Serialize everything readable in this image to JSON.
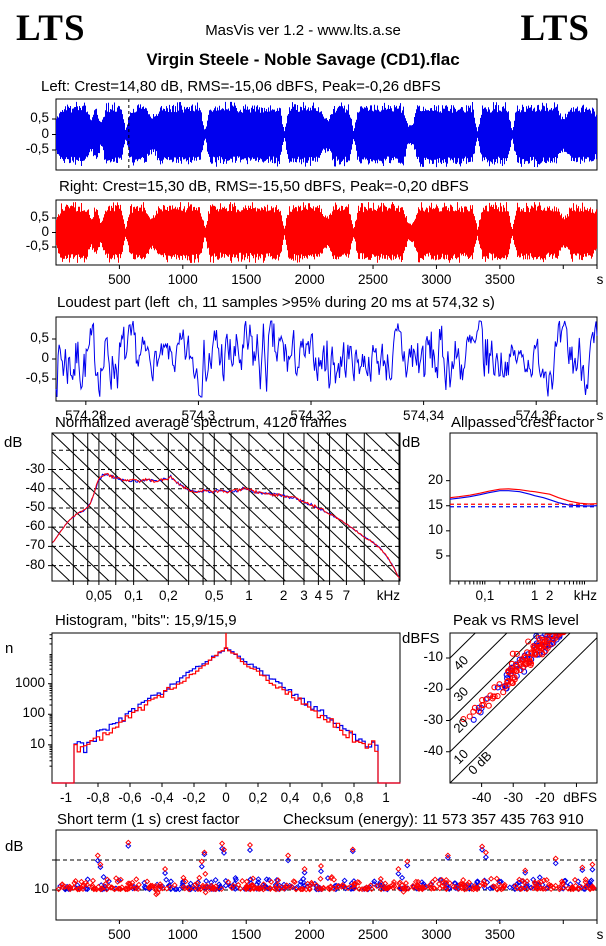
{
  "header": {
    "logo_left": "LTS",
    "logo_right": "LTS",
    "app_info": "MasVis ver 1.2 - www.lts.a.se",
    "title": "Virgin Steele - Noble Savage (CD1).flac"
  },
  "colors": {
    "left_channel": "#0000EE",
    "right_channel": "#FF0000",
    "axis": "#000000",
    "background": "#FFFFFF"
  },
  "side_labels": {
    "spectrum_db_left": "dB",
    "spectrum_db_right": "dB",
    "histogram_n": "n",
    "peak_rms_dbfs": "dBFS",
    "short_term_db": "dB"
  },
  "wave_envelope": [
    0.55,
    0.88,
    0.92,
    0.9,
    0.93,
    0.89,
    0.91,
    0.45,
    0.9,
    0.35,
    0.88,
    0.92,
    0.9,
    0.93,
    0.1,
    0.85,
    0.9,
    0.93,
    0.91,
    0.55,
    0.6,
    0.92,
    0.88,
    0.93,
    0.9,
    0.92,
    0.89,
    0.93,
    0.91,
    0.9,
    0.1,
    0.9,
    0.93,
    0.88,
    0.92,
    0.95,
    0.9,
    0.87,
    0.92,
    0.9,
    0.93,
    0.89,
    0.92,
    0.9,
    0.88,
    0.92,
    0.1,
    0.89,
    0.93,
    0.9,
    0.92,
    0.88,
    0.91,
    0.93,
    0.5,
    0.55,
    0.9,
    0.92,
    0.89,
    0.93,
    0.1,
    0.91,
    0.88,
    0.93,
    0.9,
    0.92,
    0.89,
    0.91,
    0.93,
    0.88,
    0.9,
    0.28,
    0.35,
    0.9,
    0.92,
    0.88,
    0.91,
    0.93,
    0.89,
    0.92,
    0.9,
    0.93,
    0.88,
    0.91,
    0.92,
    0.1,
    0.9,
    0.88,
    0.92,
    0.91,
    0.89,
    0.93,
    0.1,
    0.9,
    0.92,
    0.89,
    0.91,
    0.93,
    0.9,
    0.88,
    0.92,
    0.9,
    0.55,
    0.6,
    0.88,
    0.91,
    0.9,
    0.92,
    0.86,
    0.7
  ],
  "chart_data": [
    {
      "id": "wave_left",
      "type": "waveform",
      "title": "Left: Crest=14,80 dB, RMS=-15,06 dBFS, Peak=-0,26 dBFS",
      "panel": [
        56,
        99,
        541,
        71
      ],
      "x_range": [
        0,
        4266
      ],
      "yticks": [
        {
          "v": 0.5,
          "label": "0,5"
        },
        {
          "v": 0,
          "label": "0"
        },
        {
          "v": -0.5,
          "label": "-0,5"
        }
      ],
      "marker_time": 574.32,
      "jitter_seed": 11
    },
    {
      "id": "wave_right",
      "type": "waveform",
      "title": "Right: Crest=15,30 dB, RMS=-15,50 dBFS, Peak=-0,20 dBFS",
      "panel": [
        56,
        200,
        541,
        65
      ],
      "x_range": [
        0,
        4266
      ],
      "yticks": [
        {
          "v": 0.5,
          "label": "0,5"
        },
        {
          "v": 0,
          "label": "0"
        },
        {
          "v": -0.5,
          "label": "-0,5"
        }
      ],
      "xticks": [
        {
          "v": 500,
          "label": "500"
        },
        {
          "v": 1000,
          "label": "1000"
        },
        {
          "v": 1500,
          "label": "1500"
        },
        {
          "v": 2000,
          "label": "2000"
        },
        {
          "v": 2500,
          "label": "2500"
        },
        {
          "v": 3000,
          "label": "3000"
        },
        {
          "v": 3500,
          "label": "3500"
        },
        {
          "v": 4000,
          "label": ""
        },
        {
          "v": 4266,
          "label": ""
        }
      ],
      "x_unit": "s",
      "jitter_seed": 23
    },
    {
      "id": "loudest",
      "type": "noise_wave",
      "title": "Loudest part (left  ch, 11 samples >95% during 20 ms at 574,32 s)",
      "panel": [
        56,
        317,
        541,
        84
      ],
      "x_range": [
        574.2747,
        574.3708
      ],
      "yticks": [
        {
          "v": 0.5,
          "label": "0,5"
        },
        {
          "v": 0,
          "label": "0"
        },
        {
          "v": -0.5,
          "label": "-0,5"
        }
      ],
      "xticks": [
        {
          "v": 574.28,
          "label": "574,28"
        },
        {
          "v": 574.3,
          "label": "574,3"
        },
        {
          "v": 574.32,
          "label": "574,32"
        },
        {
          "v": 574.34,
          "label": "574,34"
        },
        {
          "v": 574.36,
          "label": "574,36"
        },
        {
          "v": 574.3708,
          "label": ""
        }
      ],
      "x_unit": "s",
      "noise_seed": 7
    },
    {
      "id": "spectrum",
      "type": "spectrum",
      "title": "Normalized average spectrum, 4120 frames",
      "panel": [
        52,
        433,
        348,
        148
      ],
      "f_range": [
        0.0196,
        20.4
      ],
      "db_range": [
        -88,
        -11
      ],
      "yticks": [
        {
          "v": -30,
          "label": "-30"
        },
        {
          "v": -40,
          "label": "-40"
        },
        {
          "v": -50,
          "label": "-50"
        },
        {
          "v": -60,
          "label": "-60"
        },
        {
          "v": -70,
          "label": "-70"
        },
        {
          "v": -80,
          "label": "-80"
        }
      ],
      "xticks": [
        {
          "v": 0.05,
          "label": "0,05"
        },
        {
          "v": 0.1,
          "label": "0,1"
        },
        {
          "v": 0.2,
          "label": "0,2"
        },
        {
          "v": 0.5,
          "label": "0,5"
        },
        {
          "v": 1,
          "label": "1"
        },
        {
          "v": 2,
          "label": "2"
        },
        {
          "v": 3,
          "label": "3"
        },
        {
          "v": 4,
          "label": "4"
        },
        {
          "v": 5,
          "label": "5"
        },
        {
          "v": 7,
          "label": "7"
        }
      ],
      "x_unit": "kHz",
      "vgrid": [
        0.03,
        0.04,
        0.05,
        0.07,
        0.1,
        0.2,
        0.3,
        0.4,
        0.5,
        0.7,
        1,
        2,
        3,
        4,
        5,
        7,
        10,
        20
      ],
      "dashed_db": [
        -20,
        -30,
        -40,
        -50,
        -60,
        -70,
        -80
      ],
      "diag": {
        "dx": 19.6,
        "run": 155
      },
      "points": [
        [
          0.02,
          -68
        ],
        [
          0.024,
          -61
        ],
        [
          0.028,
          -56
        ],
        [
          0.033,
          -52.5
        ],
        [
          0.038,
          -51
        ],
        [
          0.042,
          -48
        ],
        [
          0.046,
          -41
        ],
        [
          0.05,
          -35
        ],
        [
          0.055,
          -32.5
        ],
        [
          0.06,
          -32.8
        ],
        [
          0.07,
          -34.5
        ],
        [
          0.08,
          -35.5
        ],
        [
          0.09,
          -36
        ],
        [
          0.1,
          -35.5
        ],
        [
          0.11,
          -36.2
        ],
        [
          0.13,
          -35.4
        ],
        [
          0.15,
          -36
        ],
        [
          0.17,
          -35.6
        ],
        [
          0.19,
          -35
        ],
        [
          0.21,
          -33.8
        ],
        [
          0.23,
          -36
        ],
        [
          0.26,
          -38.5
        ],
        [
          0.3,
          -40.5
        ],
        [
          0.35,
          -41.6
        ],
        [
          0.4,
          -41
        ],
        [
          0.45,
          -41.6
        ],
        [
          0.5,
          -41.2
        ],
        [
          0.6,
          -41.5
        ],
        [
          0.7,
          -41.7
        ],
        [
          0.8,
          -40.8
        ],
        [
          0.9,
          -39.6
        ],
        [
          1,
          -40.3
        ],
        [
          1.1,
          -41.4
        ],
        [
          1.3,
          -42.3
        ],
        [
          1.6,
          -43
        ],
        [
          2,
          -43.6
        ],
        [
          2.5,
          -45
        ],
        [
          3,
          -47
        ],
        [
          3.5,
          -48.5
        ],
        [
          4,
          -50
        ],
        [
          5,
          -53
        ],
        [
          6,
          -55.8
        ],
        [
          7,
          -58.3
        ],
        [
          8,
          -60.8
        ],
        [
          9,
          -63
        ],
        [
          10,
          -65
        ],
        [
          12,
          -68
        ],
        [
          14,
          -71.5
        ],
        [
          16,
          -76
        ],
        [
          18,
          -81
        ],
        [
          19.5,
          -85.5
        ],
        [
          20.4,
          -87
        ]
      ],
      "noise": {
        "blue_seed": 101,
        "red_seed": 202
      }
    },
    {
      "id": "allpass",
      "type": "crest_curves",
      "title": "Allpassed crest factor",
      "panel": [
        450,
        433,
        147,
        148
      ],
      "f_range": [
        0.02,
        17.8
      ],
      "y_range": [
        0,
        29.5
      ],
      "yticks": [
        {
          "v": 20,
          "label": "20"
        },
        {
          "v": 15,
          "label": "15"
        },
        {
          "v": 10,
          "label": "10"
        },
        {
          "v": 5,
          "label": "5"
        }
      ],
      "xticks": [
        {
          "v": 0.1,
          "label": "0,1"
        },
        {
          "v": 1,
          "label": "1"
        },
        {
          "v": 2,
          "label": "2"
        }
      ],
      "x_unit": "kHz",
      "freqs": [
        0.02,
        0.03,
        0.05,
        0.08,
        0.12,
        0.2,
        0.3,
        0.5,
        0.8,
        1,
        1.5,
        2,
        3,
        5,
        8,
        12,
        17.8
      ],
      "left_curve": [
        16.3,
        16.5,
        16.8,
        17.2,
        17.6,
        18.0,
        18.0,
        17.8,
        17.3,
        17.0,
        16.6,
        16.2,
        15.6,
        15.1,
        15.0,
        14.95,
        15.0
      ],
      "right_curve": [
        16.6,
        16.8,
        17.1,
        17.5,
        17.9,
        18.3,
        18.35,
        18.2,
        17.9,
        17.8,
        17.5,
        17.3,
        16.6,
        15.9,
        15.5,
        15.35,
        15.4
      ],
      "dashed_levels": {
        "left": 14.8,
        "right": 15.3
      }
    },
    {
      "id": "histogram",
      "type": "histogram",
      "title": "Histogram, \"bits\": 15,9/15,9",
      "panel": [
        52,
        633,
        348,
        150
      ],
      "x_range": [
        -1.0875,
        1.0875
      ],
      "log_range": [
        -0.25,
        4.66
      ],
      "yticks": [
        {
          "v": 1000,
          "label": "1000"
        },
        {
          "v": 100,
          "label": "100"
        },
        {
          "v": 10,
          "label": "10"
        }
      ],
      "xticks": [
        {
          "v": -1,
          "label": "-1"
        },
        {
          "v": -0.8,
          "label": "-0,8"
        },
        {
          "v": -0.6,
          "label": "-0,6"
        },
        {
          "v": -0.4,
          "label": "-0,4"
        },
        {
          "v": -0.2,
          "label": "-0,2"
        },
        {
          "v": 0,
          "label": "0"
        },
        {
          "v": 0.2,
          "label": "0,2"
        },
        {
          "v": 0.4,
          "label": "0,4"
        },
        {
          "v": 0.6,
          "label": "0,6"
        },
        {
          "v": 0.8,
          "label": "0,8"
        },
        {
          "v": 1,
          "label": "1"
        }
      ],
      "shape": {
        "peak_log": 4.16,
        "slope": 3.55,
        "foot_start": 0.86,
        "foot_log": 0.95,
        "cliff": 0.958
      },
      "seeds": {
        "blue": 31,
        "red": 47
      }
    },
    {
      "id": "peak_rms",
      "type": "scatter_peak_rms",
      "title": "Peak vs RMS level",
      "panel": [
        450,
        633,
        147,
        150
      ],
      "x_range": [
        -50,
        -3.5
      ],
      "y_range": [
        -50,
        -2
      ],
      "xticks": [
        {
          "v": -40,
          "label": "-40"
        },
        {
          "v": -30,
          "label": "-30"
        },
        {
          "v": -20,
          "label": "-20"
        },
        {
          "v": -10,
          "label": ""
        }
      ],
      "x_unit": "dBFS",
      "yticks": [
        {
          "v": -10,
          "label": "-10"
        },
        {
          "v": -20,
          "label": "-20"
        },
        {
          "v": -30,
          "label": "-30"
        },
        {
          "v": -40,
          "label": "-40"
        }
      ],
      "diagonals": [
        {
          "crest": 40,
          "label": "40"
        },
        {
          "crest": 30,
          "label": "30"
        },
        {
          "crest": 20,
          "label": "20"
        },
        {
          "crest": 10,
          "label": "10"
        },
        {
          "crest": 0,
          "label": "0 dB"
        }
      ],
      "scatter": {
        "red_n": 120,
        "red_seed": 5,
        "blue_n": 70,
        "blue_seed": 9,
        "rms_min": -47,
        "rms_span": 33.5,
        "crest_base": 12,
        "crest_spread": 5.5,
        "peak_max": -0.4
      }
    },
    {
      "id": "short_crest",
      "type": "scatter_time",
      "title": "Short term (1 s) crest factor",
      "checksum": "Checksum (energy): 11 573 357 435 763 910",
      "panel": [
        56,
        830,
        541,
        90
      ],
      "x_range": [
        0,
        4266
      ],
      "y_range": [
        0,
        30
      ],
      "yticks": [
        {
          "v": 10,
          "label": "10"
        },
        {
          "v": 20,
          "label": ""
        }
      ],
      "dashed_levels": [
        10,
        20
      ],
      "xticks": [
        {
          "v": 500,
          "label": "500"
        },
        {
          "v": 1000,
          "label": "1000"
        },
        {
          "v": 1500,
          "label": "1500"
        },
        {
          "v": 2000,
          "label": "2000"
        },
        {
          "v": 2500,
          "label": "2500"
        },
        {
          "v": 3000,
          "label": "3000"
        },
        {
          "v": 3500,
          "label": "3500"
        },
        {
          "v": 4000,
          "label": ""
        },
        {
          "v": 4266,
          "label": ""
        }
      ],
      "x_unit": "s",
      "scatter": {
        "red_n": 360,
        "red_seed": 13,
        "blue_n": 260,
        "blue_seed": 29,
        "base": 10.2,
        "spread": 4.3
      },
      "spikes": [
        [
          330,
          21.5
        ],
        [
          350,
          18.5
        ],
        [
          570,
          25.8
        ],
        [
          860,
          17
        ],
        [
          1150,
          19.5
        ],
        [
          1170,
          22.5
        ],
        [
          1310,
          25.5
        ],
        [
          1325,
          23.5
        ],
        [
          1530,
          25
        ],
        [
          1830,
          21.5
        ],
        [
          1960,
          17
        ],
        [
          2090,
          18
        ],
        [
          2340,
          23.5
        ],
        [
          2700,
          17
        ],
        [
          2770,
          19.5
        ],
        [
          3090,
          21.5
        ],
        [
          3360,
          24.5
        ],
        [
          3390,
          22.5
        ],
        [
          3700,
          16.5
        ],
        [
          3940,
          20.5
        ],
        [
          4150,
          17.5
        ],
        [
          4230,
          18.5
        ]
      ],
      "dips": [
        [
          790,
          8.6
        ],
        [
          802,
          9.0
        ],
        [
          1180,
          9.2
        ],
        [
          2740,
          9.4
        ]
      ]
    }
  ]
}
